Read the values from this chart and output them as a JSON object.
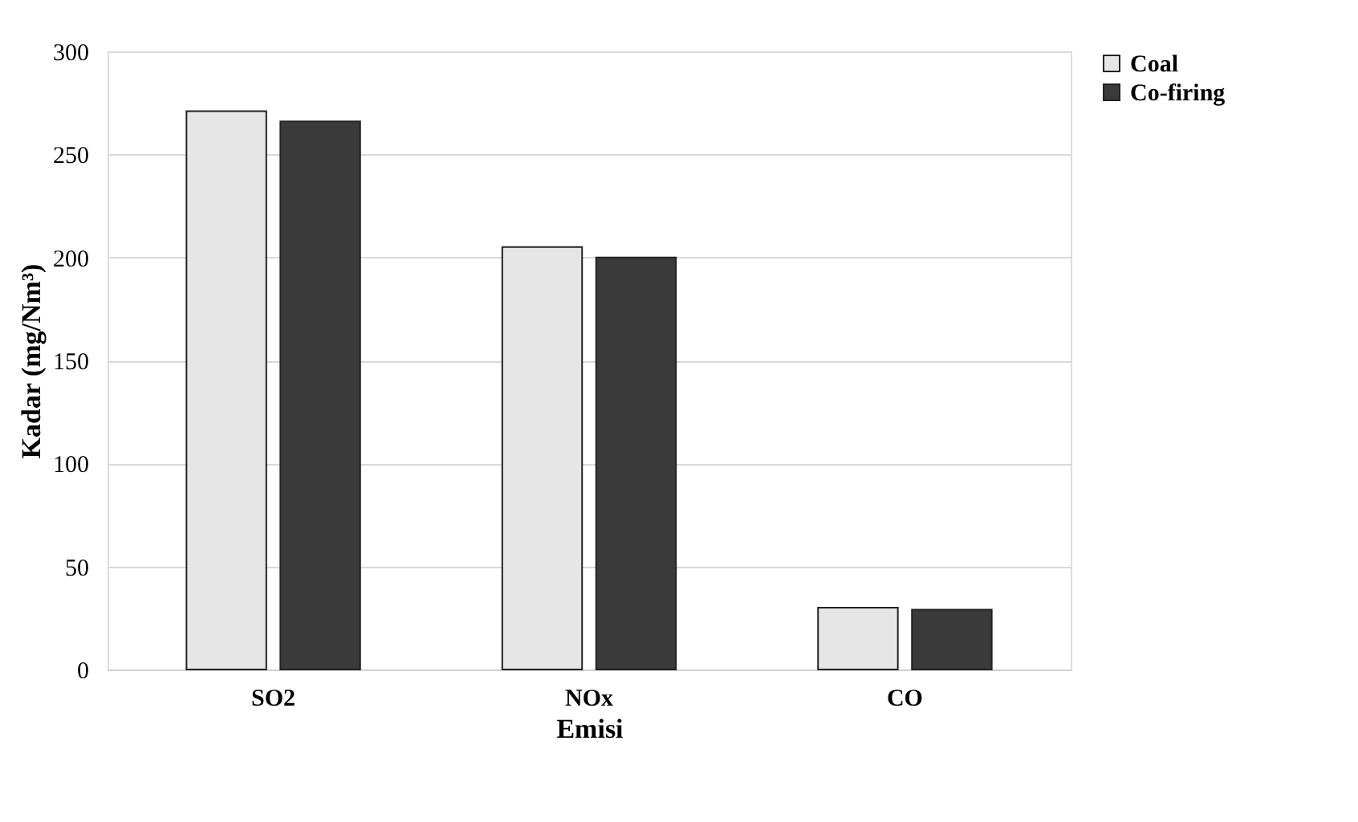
{
  "chart_data": {
    "type": "bar",
    "xlabel": "Emisi",
    "ylabel": "Kadar (mg/Nm³)",
    "categories": [
      "SO2",
      "NOx",
      "CO"
    ],
    "series": [
      {
        "name": "Coal",
        "color": "#e6e6e6",
        "values": [
          271,
          205,
          30
        ]
      },
      {
        "name": "Co-firing",
        "color": "#3a3a3a",
        "values": [
          266,
          200,
          29
        ]
      }
    ],
    "ylim": [
      0,
      300
    ],
    "yticks": [
      0,
      50,
      100,
      150,
      200,
      250,
      300
    ],
    "grid": "y",
    "legend": "right"
  }
}
